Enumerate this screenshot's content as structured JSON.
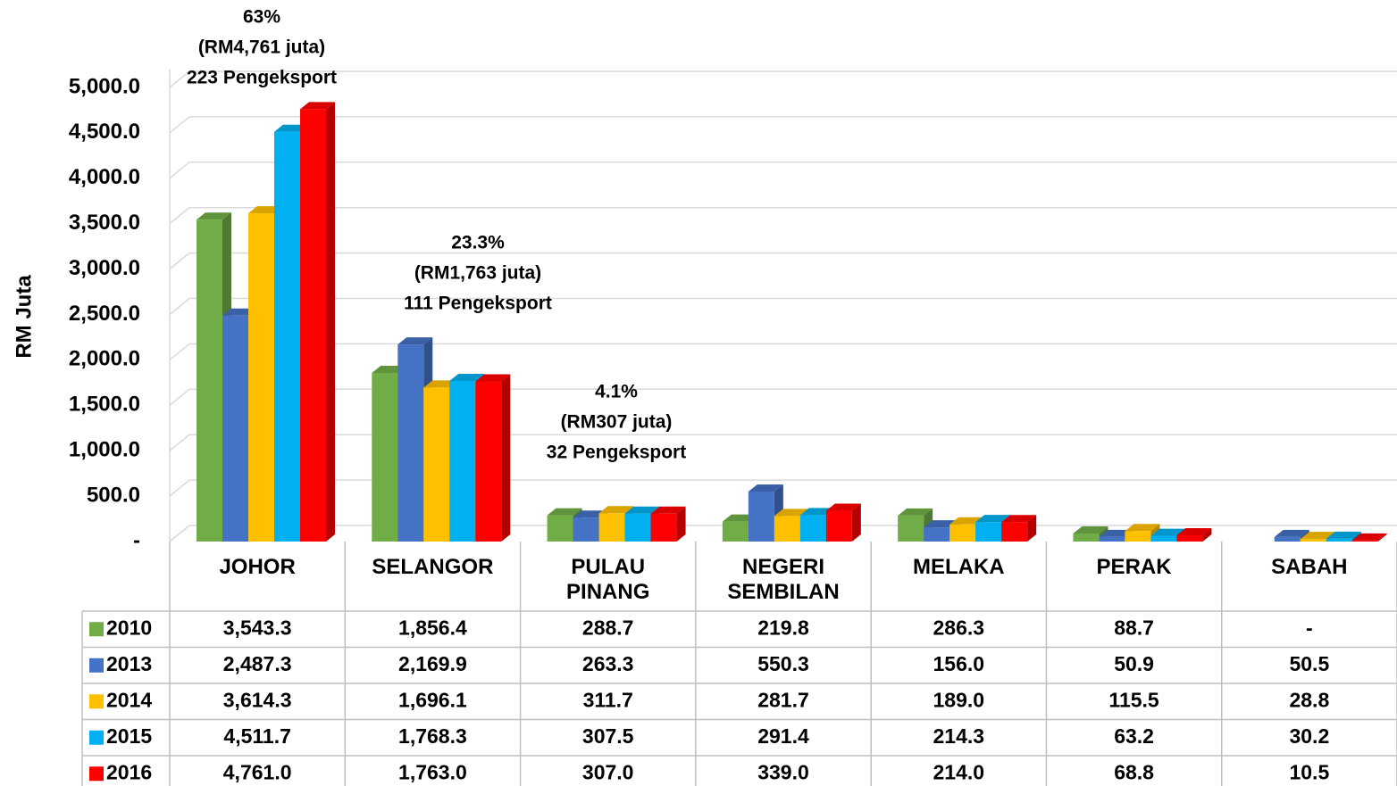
{
  "chart_data": {
    "type": "bar",
    "y_label": "RM Juta",
    "categories": [
      "JOHOR",
      "SELANGOR",
      "PULAU PINANG",
      "NEGERI SEMBILAN",
      "MELAKA",
      "PERAK",
      "SABAH"
    ],
    "series": [
      {
        "name": "2010",
        "color": "#70ad47",
        "values": [
          3543.3,
          1856.4,
          288.7,
          219.8,
          286.3,
          88.7,
          null
        ],
        "value_labels": [
          "3,543.3",
          "1,856.4",
          "288.7",
          "219.8",
          "286.3",
          "88.7",
          "-"
        ]
      },
      {
        "name": "2013",
        "color": "#4472c4",
        "values": [
          2487.3,
          2169.9,
          263.3,
          550.3,
          156.0,
          50.9,
          50.5
        ],
        "value_labels": [
          "2,487.3",
          "2,169.9",
          "263.3",
          "550.3",
          "156.0",
          "50.9",
          "50.5"
        ]
      },
      {
        "name": "2014",
        "color": "#ffc000",
        "values": [
          3614.3,
          1696.1,
          311.7,
          281.7,
          189.0,
          115.5,
          28.8
        ],
        "value_labels": [
          "3,614.3",
          "1,696.1",
          "311.7",
          "281.7",
          "189.0",
          "115.5",
          "28.8"
        ]
      },
      {
        "name": "2015",
        "color": "#00b0f0",
        "values": [
          4511.7,
          1768.3,
          307.5,
          291.4,
          214.3,
          63.2,
          30.2
        ],
        "value_labels": [
          "4,511.7",
          "1,768.3",
          "307.5",
          "291.4",
          "214.3",
          "63.2",
          "30.2"
        ]
      },
      {
        "name": "2016",
        "color": "#ff0000",
        "values": [
          4761.0,
          1763.0,
          307.0,
          339.0,
          214.0,
          68.8,
          10.5
        ],
        "value_labels": [
          "4,761.0",
          "1,763.0",
          "307.0",
          "339.0",
          "214.0",
          "68.8",
          "10.5"
        ]
      }
    ],
    "ylim": [
      0,
      5000
    ],
    "yticks": [
      {
        "value": 0,
        "label": "-"
      },
      {
        "value": 500,
        "label": "500.0"
      },
      {
        "value": 1000,
        "label": "1,000.0"
      },
      {
        "value": 1500,
        "label": "1,500.0"
      },
      {
        "value": 2000,
        "label": "2,000.0"
      },
      {
        "value": 2500,
        "label": "2,500.0"
      },
      {
        "value": 3000,
        "label": "3,000.0"
      },
      {
        "value": 3500,
        "label": "3,500.0"
      },
      {
        "value": 4000,
        "label": "4,000.0"
      },
      {
        "value": 4500,
        "label": "4,500.0"
      },
      {
        "value": 5000,
        "label": "5,000.0"
      }
    ],
    "grid": true,
    "annotations": [
      [
        "63%",
        "(RM4,761 juta)",
        "223 Pengeksport"
      ],
      [
        "23.3%",
        "(RM1,763 juta)",
        "111 Pengeksport"
      ],
      [
        "4.1%",
        "(RM307 juta)",
        "32 Pengeksport"
      ]
    ]
  }
}
